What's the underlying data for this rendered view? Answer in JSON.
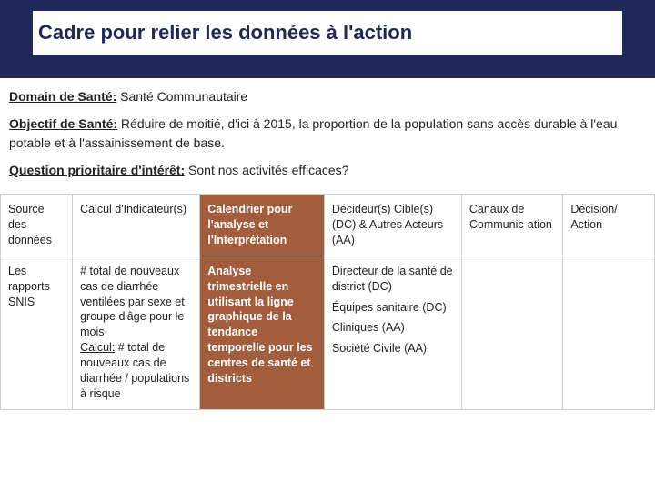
{
  "title": "Cadre pour relier les données à l'action",
  "info": {
    "domain_label": "Domain de Santé:",
    "domain_value": "Santé Communautaire",
    "objective_label": "Objectif de Santé:",
    "objective_value": "Réduire de moitié, d'ici à 2015, la proportion de la population sans accès durable à l'eau potable et à l'assainissement de base.",
    "question_label": "Question prioritaire d'intérêt:",
    "question_value": "Sont nos activités efficaces?"
  },
  "table": {
    "columns": [
      {
        "text": "Source des données",
        "highlight": false,
        "width": "11%"
      },
      {
        "text": "Calcul d'Indicateur(s)",
        "highlight": false,
        "width": "19.5%"
      },
      {
        "text": "Calendrier pour l'analyse et l'Interprétation",
        "highlight": true,
        "width": "19%"
      },
      {
        "text": "Décideur(s) Cible(s) (DC) & Autres Acteurs (AA)",
        "highlight": false,
        "width": "21%"
      },
      {
        "text": "Canaux de Communic-ation",
        "highlight": false,
        "width": "15.5%"
      },
      {
        "text": "Décision/ Action",
        "highlight": false,
        "width": "14%"
      }
    ],
    "row": {
      "source": "Les rapports SNIS",
      "indicator_part1": "# total de nouveaux cas de diarrhée ventilées par sexe et groupe d'âge pour le mois",
      "indicator_calc_label": "Calcul:",
      "indicator_part2": "# total de nouveaux cas de diarrhée / populations à risque",
      "calendar": "Analyse trimestrielle en utilisant la ligne graphique de la tendance temporelle pour les centres de santé et districts",
      "stakeholders": [
        "Directeur de la santé de district (DC)",
        "Équipes sanitaire (DC)",
        "Cliniques (AA)",
        "Société Civile (AA)"
      ],
      "channels": "",
      "decision": ""
    }
  },
  "colors": {
    "title_bg": "#1f2859",
    "highlight_bg": "#a25d3d",
    "border": "#cfcfcf",
    "text": "#222222",
    "white": "#ffffff"
  }
}
